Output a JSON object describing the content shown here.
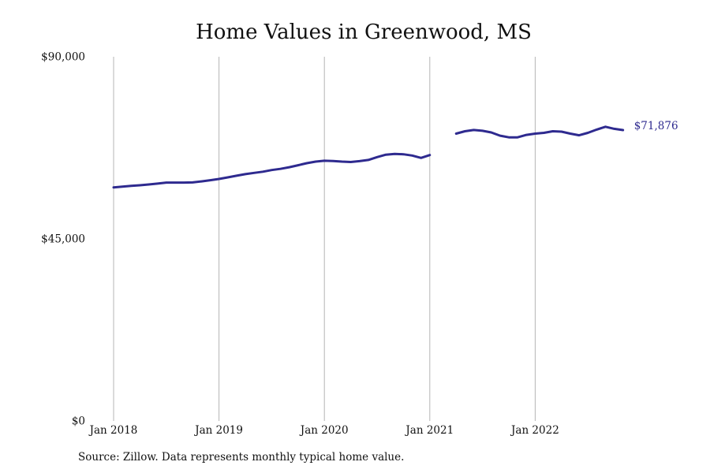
{
  "chart_data": {
    "type": "line",
    "title": "Home Values in Greenwood, MS",
    "source": "Source: Zillow. Data represents monthly typical home value.",
    "ylim": [
      0,
      90000
    ],
    "yticks": [
      {
        "value": 0,
        "label": "$0"
      },
      {
        "value": 45000,
        "label": "$45,000"
      },
      {
        "value": 90000,
        "label": "$90,000"
      }
    ],
    "xlim": [
      "2018-01",
      "2022-12"
    ],
    "xticks": [
      {
        "value": "2018-01",
        "label": "Jan 2018"
      },
      {
        "value": "2019-01",
        "label": "Jan 2019"
      },
      {
        "value": "2020-01",
        "label": "Jan 2020"
      },
      {
        "value": "2021-01",
        "label": "Jan 2021"
      },
      {
        "value": "2022-01",
        "label": "Jan 2022"
      }
    ],
    "grid": {
      "vertical": true,
      "horizontal": false
    },
    "line_color": "#2e2a8f",
    "end_label": "$71,876",
    "series": [
      {
        "points": [
          {
            "x": "2018-01",
            "y": 57700
          },
          {
            "x": "2018-02",
            "y": 57900
          },
          {
            "x": "2018-03",
            "y": 58100
          },
          {
            "x": "2018-04",
            "y": 58250
          },
          {
            "x": "2018-05",
            "y": 58450
          },
          {
            "x": "2018-06",
            "y": 58650
          },
          {
            "x": "2018-07",
            "y": 58900
          },
          {
            "x": "2018-08",
            "y": 58900
          },
          {
            "x": "2018-09",
            "y": 58900
          },
          {
            "x": "2018-10",
            "y": 58950
          },
          {
            "x": "2018-11",
            "y": 59200
          },
          {
            "x": "2018-12",
            "y": 59500
          },
          {
            "x": "2019-01",
            "y": 59800
          },
          {
            "x": "2019-02",
            "y": 60200
          },
          {
            "x": "2019-03",
            "y": 60600
          },
          {
            "x": "2019-04",
            "y": 61000
          },
          {
            "x": "2019-05",
            "y": 61300
          },
          {
            "x": "2019-06",
            "y": 61600
          },
          {
            "x": "2019-07",
            "y": 62000
          },
          {
            "x": "2019-08",
            "y": 62300
          },
          {
            "x": "2019-09",
            "y": 62700
          },
          {
            "x": "2019-10",
            "y": 63200
          },
          {
            "x": "2019-11",
            "y": 63700
          },
          {
            "x": "2019-12",
            "y": 64100
          },
          {
            "x": "2020-01",
            "y": 64300
          },
          {
            "x": "2020-02",
            "y": 64250
          },
          {
            "x": "2020-03",
            "y": 64100
          },
          {
            "x": "2020-04",
            "y": 64000
          },
          {
            "x": "2020-05",
            "y": 64200
          },
          {
            "x": "2020-06",
            "y": 64500
          },
          {
            "x": "2020-07",
            "y": 65200
          },
          {
            "x": "2020-08",
            "y": 65800
          },
          {
            "x": "2020-09",
            "y": 66000
          },
          {
            "x": "2020-10",
            "y": 65900
          },
          {
            "x": "2020-11",
            "y": 65600
          },
          {
            "x": "2020-12",
            "y": 65000
          },
          {
            "x": "2021-01",
            "y": 65700
          },
          {
            "x": "2021-02",
            "y": null
          },
          {
            "x": "2021-03",
            "y": null
          },
          {
            "x": "2021-04",
            "y": 71000
          },
          {
            "x": "2021-05",
            "y": 71600
          },
          {
            "x": "2021-06",
            "y": 71900
          },
          {
            "x": "2021-07",
            "y": 71700
          },
          {
            "x": "2021-08",
            "y": 71300
          },
          {
            "x": "2021-09",
            "y": 70500
          },
          {
            "x": "2021-10",
            "y": 70100
          },
          {
            "x": "2021-11",
            "y": 70100
          },
          {
            "x": "2021-12",
            "y": 70700
          },
          {
            "x": "2022-01",
            "y": 71000
          },
          {
            "x": "2022-02",
            "y": 71200
          },
          {
            "x": "2022-03",
            "y": 71600
          },
          {
            "x": "2022-04",
            "y": 71500
          },
          {
            "x": "2022-05",
            "y": 71000
          },
          {
            "x": "2022-06",
            "y": 70600
          },
          {
            "x": "2022-07",
            "y": 71200
          },
          {
            "x": "2022-08",
            "y": 72000
          },
          {
            "x": "2022-09",
            "y": 72700
          },
          {
            "x": "2022-10",
            "y": 72200
          },
          {
            "x": "2022-11",
            "y": 71876
          }
        ]
      }
    ]
  }
}
